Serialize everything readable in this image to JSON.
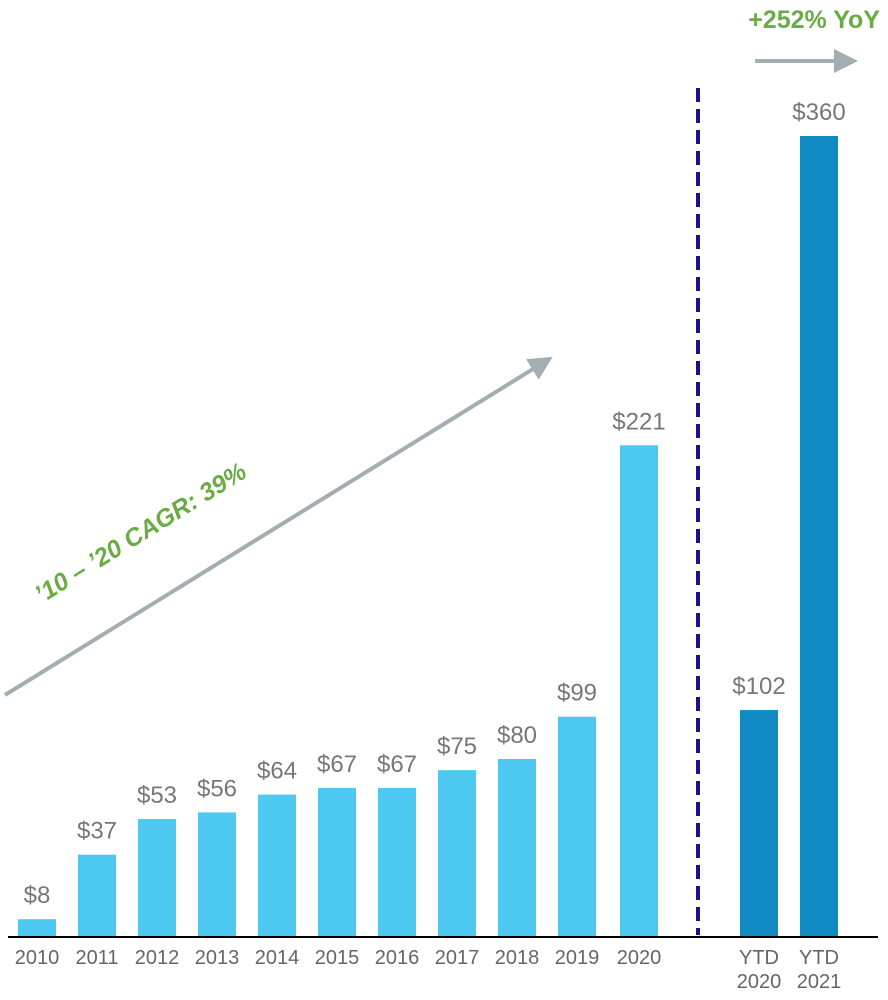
{
  "chart_data": {
    "type": "bar",
    "categories": [
      "2010",
      "2011",
      "2012",
      "2013",
      "2014",
      "2015",
      "2016",
      "2017",
      "2018",
      "2019",
      "2020",
      "YTD 2020",
      "YTD 2021"
    ],
    "values": [
      8,
      37,
      53,
      56,
      64,
      67,
      67,
      75,
      80,
      99,
      221,
      102,
      360
    ],
    "data_labels": [
      "$8",
      "$37",
      "$53",
      "$56",
      "$64",
      "$67",
      "$67",
      "$75",
      "$80",
      "$99",
      "$221",
      "$102",
      "$360"
    ],
    "ylim": [
      0,
      380
    ],
    "grid": false,
    "annotations": {
      "cagr": "’10 – ’20 CAGR: 39%",
      "yoy": "+252% YoY"
    },
    "colors": {
      "annual_bar": "#4CC8F1",
      "ytd_bar": "#118AC4",
      "label_text": "#777777",
      "annotation_text": "#6AAB44",
      "arrow": "#A3AEB3",
      "divider": "#1C1290",
      "axis": "#000000"
    }
  }
}
